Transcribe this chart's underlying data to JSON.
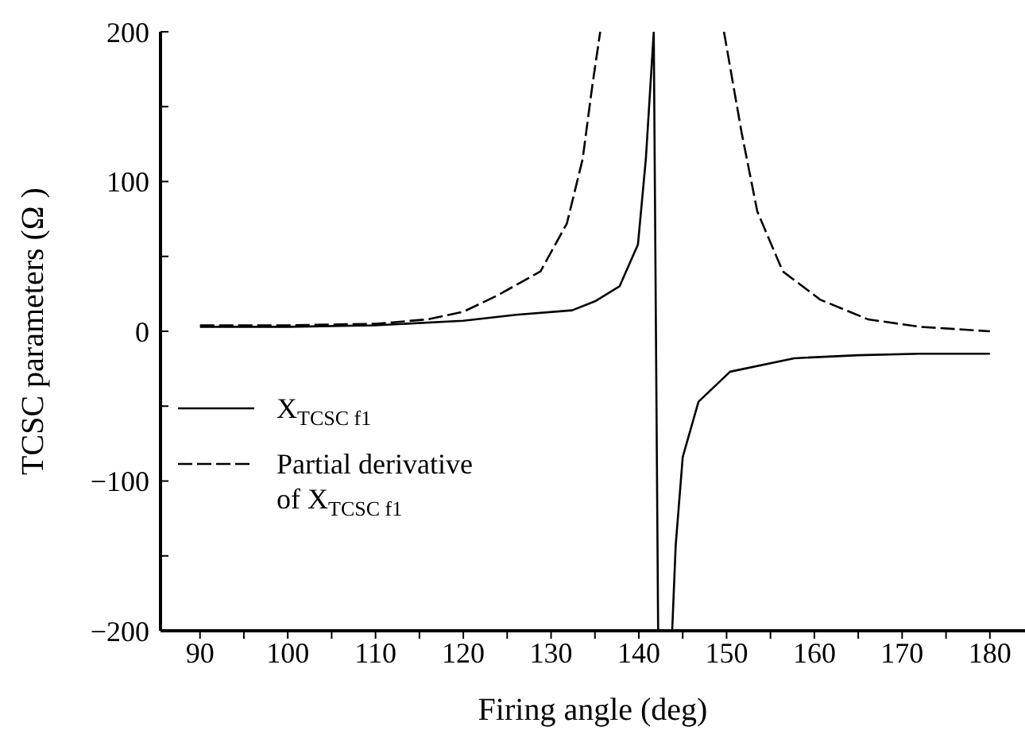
{
  "chart_data": {
    "type": "line",
    "xlabel": "Firing angle (deg)",
    "ylabel": "TCSC parameters (Ω )",
    "xlim": [
      85.5,
      184
    ],
    "xticks": [
      90,
      {
        "value": 95,
        "label": null
      },
      100,
      {
        "value": 105,
        "label": null
      },
      110,
      {
        "value": 115,
        "label": null
      },
      120,
      {
        "value": 125,
        "label": null
      },
      130,
      {
        "value": 135,
        "label": null
      },
      140,
      {
        "value": 145,
        "label": null
      },
      150,
      {
        "value": 155,
        "label": null
      },
      160,
      {
        "value": 165,
        "label": null
      },
      170,
      {
        "value": 175,
        "label": null
      },
      180
    ],
    "ylim": [
      -200,
      200
    ],
    "yticks": [
      {
        "value": -200,
        "label": "−200"
      },
      {
        "value": -150,
        "label": null
      },
      {
        "value": -100,
        "label": "−100"
      },
      {
        "value": -50,
        "label": null
      },
      0,
      {
        "value": 50,
        "label": null
      },
      100,
      {
        "value": 150,
        "label": null
      },
      200
    ],
    "grid": false,
    "legend": "left",
    "marker": "none",
    "series": [
      {
        "name": "X$_{TCSC f1}$",
        "color": "#000000",
        "line_style": "solid",
        "x": [
          90,
          100,
          110,
          120,
          126,
          132.4,
          135,
          137.8,
          139.9,
          140.8,
          141.7,
          142.2,
          142.9,
          143.8,
          144.2,
          145,
          146.8,
          150.4,
          157.7,
          165,
          172,
          180
        ],
        "values": [
          3,
          3,
          4,
          7,
          11,
          14,
          20,
          30,
          58,
          115,
          200,
          -200,
          null,
          -200,
          -143,
          -84,
          -47,
          -27,
          -18,
          -16,
          -15,
          -15
        ]
      },
      {
        "name": "Partial derivative of X$_{TCSC f1}$",
        "color": "#000000",
        "line_style": "dashed",
        "x": [
          90,
          100,
          110,
          116,
          120,
          123.9,
          128.8,
          131.8,
          133.6,
          134.7,
          135.6,
          142.5,
          149.7,
          151.7,
          153.5,
          156.4,
          160.7,
          166.1,
          172,
          180
        ],
        "values": [
          4,
          4,
          5,
          8,
          13,
          24,
          40,
          72,
          115,
          164,
          200,
          null,
          200,
          133,
          80,
          40,
          21,
          8,
          3,
          0
        ]
      }
    ]
  }
}
